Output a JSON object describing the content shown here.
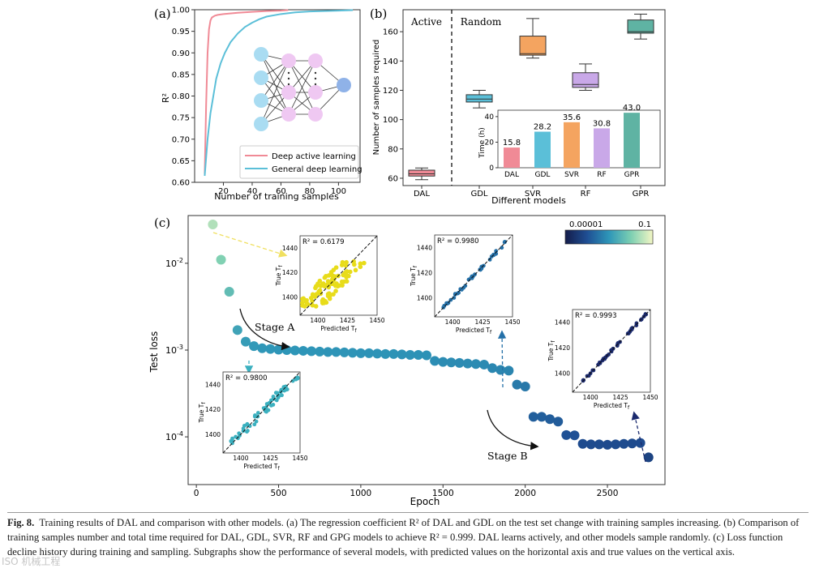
{
  "chart_data": [
    {
      "panel": "(a)",
      "type": "line",
      "xlabel": "Number of training samples",
      "ylabel": "R²",
      "xlim": [
        0,
        115
      ],
      "ylim": [
        0.6,
        1.0
      ],
      "xticks": [
        20,
        40,
        60,
        80,
        100
      ],
      "yticks": [
        "0.60",
        "0.65",
        "0.70",
        "0.75",
        "0.80",
        "0.85",
        "0.90",
        "0.95",
        "1.00"
      ],
      "series": [
        {
          "name": "Deep active learning",
          "color": "#f08a96",
          "x": [
            7,
            8,
            9,
            10,
            11,
            12,
            14,
            16,
            20,
            30,
            40,
            50,
            60,
            65
          ],
          "y": [
            0.62,
            0.78,
            0.9,
            0.955,
            0.975,
            0.982,
            0.986,
            0.988,
            0.99,
            0.993,
            0.995,
            0.997,
            0.998,
            0.999
          ]
        },
        {
          "name": "General deep learning",
          "color": "#5bbfd8",
          "x": [
            7,
            9,
            11,
            13,
            15,
            18,
            21,
            25,
            30,
            35,
            40,
            45,
            50,
            60,
            70,
            80,
            90,
            100,
            110
          ],
          "y": [
            0.615,
            0.7,
            0.76,
            0.8,
            0.84,
            0.875,
            0.9,
            0.925,
            0.945,
            0.96,
            0.97,
            0.978,
            0.984,
            0.99,
            0.994,
            0.996,
            0.997,
            0.998,
            0.999
          ]
        }
      ]
    },
    {
      "panel": "(b)",
      "type": "box",
      "xlabel": "Different models",
      "ylabel": "Number of samples required",
      "ylim": [
        55,
        175
      ],
      "yticks": [
        60,
        80,
        100,
        120,
        140,
        160
      ],
      "region_labels": [
        "Active",
        "Random"
      ],
      "categories": [
        "DAL",
        "GDL",
        "SVR",
        "RF",
        "GPR"
      ],
      "boxes": [
        {
          "name": "DAL",
          "color": "#f08a96",
          "whisker_low": 59,
          "q1": 61.5,
          "median": 63,
          "q3": 65.5,
          "whisker_high": 67
        },
        {
          "name": "GDL",
          "color": "#5bbfd8",
          "whisker_low": 108,
          "q1": 112,
          "median": 114,
          "q3": 117,
          "whisker_high": 120
        },
        {
          "name": "SVR",
          "color": "#f4a460",
          "whisker_low": 142,
          "q1": 144,
          "median": 145,
          "q3": 157,
          "whisker_high": 169
        },
        {
          "name": "RF",
          "color": "#c9a8e8",
          "whisker_low": 120,
          "q1": 122,
          "median": 124,
          "q3": 132,
          "whisker_high": 138
        },
        {
          "name": "GPR",
          "color": "#5fb3a3",
          "whisker_low": 155,
          "q1": 159,
          "median": 160,
          "q3": 168,
          "whisker_high": 172
        }
      ],
      "inset": {
        "type": "bar",
        "ylabel": "Time (h)",
        "ylim": [
          0,
          45
        ],
        "yticks": [
          0,
          20,
          40
        ],
        "categories": [
          "DAL",
          "GDL",
          "SVR",
          "RF",
          "GPR"
        ],
        "values": [
          15.8,
          28.2,
          35.6,
          30.8,
          43.0
        ],
        "labels": [
          "15.8",
          "28.2",
          "35.6",
          "30.8",
          "43.0"
        ],
        "colors": [
          "#f08a96",
          "#5bbfd8",
          "#f4a460",
          "#c9a8e8",
          "#5fb3a3"
        ]
      }
    },
    {
      "panel": "(c)",
      "type": "scatter",
      "xlabel": "Epoch",
      "ylabel": "Test loss",
      "xlim": [
        -50,
        2850
      ],
      "ylim_log10": [
        -4.55,
        -1.45
      ],
      "xticks": [
        "0",
        "500",
        "1000",
        "1500",
        "2000",
        "2500"
      ],
      "yticks": [
        {
          "base": "10",
          "exp": "-2",
          "value": 0.01
        },
        {
          "base": "10",
          "exp": "-3",
          "value": 0.001
        },
        {
          "base": "10",
          "exp": "-4",
          "value": 0.0001
        }
      ],
      "colorbar": {
        "min_label": "0.00001",
        "max_label": "0.1"
      },
      "points": {
        "x": [
          100,
          150,
          200,
          250,
          300,
          350,
          400,
          450,
          500,
          550,
          600,
          650,
          700,
          750,
          800,
          850,
          900,
          950,
          1000,
          1050,
          1100,
          1150,
          1200,
          1250,
          1300,
          1350,
          1400,
          1450,
          1500,
          1550,
          1600,
          1650,
          1700,
          1750,
          1800,
          1850,
          1900,
          1950,
          2000,
          2050,
          2100,
          2150,
          2200,
          2250,
          2300,
          2350,
          2400,
          2450,
          2500,
          2550,
          2600,
          2650,
          2700,
          2750
        ],
        "y": [
          0.028,
          0.011,
          0.0047,
          0.0017,
          0.00125,
          0.00111,
          0.00105,
          0.00103,
          0.00101,
          0.001,
          0.00099,
          0.00098,
          0.00097,
          0.00096,
          0.00095,
          0.00095,
          0.00094,
          0.00093,
          0.00092,
          0.00092,
          0.00091,
          0.0009,
          0.0009,
          0.00089,
          0.00088,
          0.00088,
          0.00087,
          0.00075,
          0.00073,
          0.00072,
          0.00071,
          0.0007,
          0.00069,
          0.00068,
          0.00062,
          0.00059,
          0.00058,
          0.0004,
          0.00038,
          0.00017,
          0.00017,
          0.00016,
          0.00015,
          0.000105,
          0.000104,
          8.3e-05,
          8.2e-05,
          8.2e-05,
          8.1e-05,
          8.2e-05,
          8.3e-05,
          8.4e-05,
          8.5e-05,
          5.8e-05
        ]
      },
      "annotations": [
        "Stage A",
        "Stage B"
      ],
      "subplots": [
        {
          "r2_label": "R² = 0.6179",
          "xlabel": "Predicted T",
          "ylabel": "True T",
          "xticks": [
            "1400",
            "1425",
            "1450"
          ],
          "yticks": [
            "1400",
            "1420",
            "1440"
          ],
          "color": "#e8dc1a"
        },
        {
          "r2_label": "R² = 0.9980",
          "xlabel": "Predicted T",
          "ylabel": "True T",
          "xticks": [
            "1400",
            "1425",
            "1450"
          ],
          "yticks": [
            "1400",
            "1420",
            "1440"
          ],
          "color": "#2470a8"
        },
        {
          "r2_label": "R² = 0.9800",
          "xlabel": "Predicted T",
          "ylabel": "True T",
          "xticks": [
            "1400",
            "1425",
            "1450"
          ],
          "yticks": [
            "1400",
            "1420",
            "1440"
          ],
          "color": "#3bb0bf"
        },
        {
          "r2_label": "R² = 0.9993",
          "xlabel": "Predicted T",
          "ylabel": "True T",
          "xticks": [
            "1400",
            "1425",
            "1450"
          ],
          "yticks": [
            "1400",
            "1420",
            "1440"
          ],
          "color": "#1b2a6e"
        }
      ]
    }
  ],
  "caption": {
    "label": "Fig. 8.",
    "text": "Training results of DAL and comparison with other models. (a) The regression coefficient R² of DAL and GDL on the test set change with training samples increasing. (b) Comparison of training samples number and total time required for DAL, GDL, SVR, RF and GPG models to achieve R² = 0.999. DAL learns actively, and other models sample randomly. (c) Loss function decline history during training and sampling. Subgraphs show the performance of several models, with predicted values on the horizontal axis and true values on the vertical axis."
  },
  "watermark": "ISO 机械工程"
}
